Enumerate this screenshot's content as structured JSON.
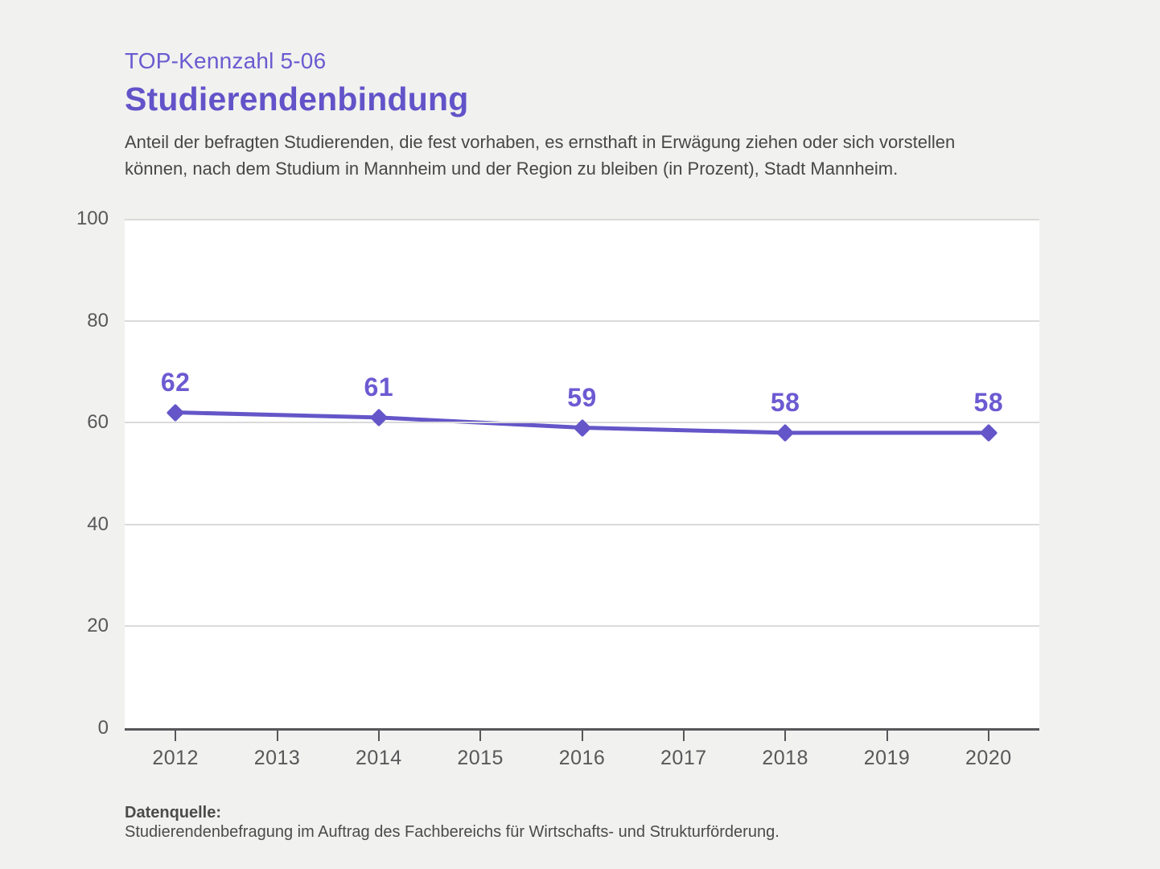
{
  "header": {
    "kicker": "TOP-Kennzahl 5-06",
    "title": "Studierendenbindung",
    "subtitle": "Anteil der befragten Studierenden, die fest vorhaben, es ernsthaft in Erwägung ziehen oder sich vorstellen können, nach dem Studium in Mannheim und der Region zu bleiben (in Prozent), Stadt Mannheim."
  },
  "footer": {
    "source_label": "Datenquelle:",
    "source_text": "Studierendenbefragung im Auftrag des Fachbereichs für Wirtschafts- und Strukturförderung."
  },
  "chart_data": {
    "type": "line",
    "title": "Studierendenbindung",
    "categories": [
      "2012",
      "2013",
      "2014",
      "2015",
      "2016",
      "2017",
      "2018",
      "2019",
      "2020"
    ],
    "series": [
      {
        "name": "Studierendenbindung (Prozent)",
        "values": [
          62,
          null,
          61,
          null,
          59,
          null,
          58,
          null,
          58
        ]
      }
    ],
    "xlabel": "",
    "ylabel": "",
    "ylim": [
      0,
      100
    ],
    "yticks": [
      0,
      20,
      40,
      60,
      80,
      100
    ],
    "grid": "horizontal",
    "legend": "none",
    "marker": "diamond"
  },
  "colors": {
    "background": "#f1f1ef",
    "plot_background": "#ffffff",
    "accent": "#6253c9",
    "line": "#6456c8",
    "marker_fill": "#6456c8",
    "value_label": "#6c5ad2",
    "gridline": "#dadada",
    "axis": "#57575a",
    "axis_text": "#58585a",
    "body_text": "#474747"
  }
}
